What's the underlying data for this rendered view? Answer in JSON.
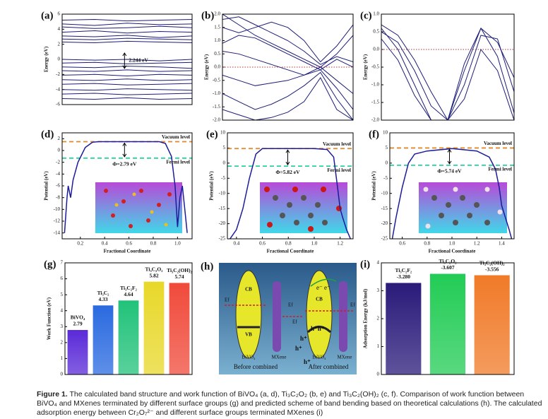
{
  "chart_data": [
    {
      "type": "line",
      "label": "(a)",
      "ylabel": "Energy (eV)",
      "color": "#1c1c78",
      "ylim": [
        -6,
        6
      ],
      "yticks": [
        -6,
        -4,
        -2,
        0,
        2,
        4,
        6
      ],
      "annotation": "2.244 eV",
      "series": [
        {
          "values": [
            5.2,
            5.3,
            5.1,
            5.2,
            5.3
          ]
        },
        {
          "values": [
            4.7,
            4.5,
            4.8,
            4.6,
            4.7
          ]
        },
        {
          "values": [
            4.3,
            4.1,
            4.2,
            4.4,
            4.2
          ]
        },
        {
          "values": [
            3.6,
            3.8,
            3.5,
            3.7,
            3.6
          ]
        },
        {
          "values": [
            3.1,
            3.0,
            3.2,
            2.9,
            3.1
          ]
        },
        {
          "values": [
            2.7,
            2.6,
            2.8,
            2.7,
            2.6
          ]
        },
        {
          "values": [
            2.3,
            2.2,
            2.4,
            2.3,
            2.2
          ]
        },
        {
          "values": [
            0,
            -0.1,
            0,
            -0.2,
            0
          ]
        },
        {
          "values": [
            -0.5,
            -0.4,
            -0.6,
            -0.5,
            -0.4
          ]
        },
        {
          "values": [
            -1.0,
            -1.1,
            -0.9,
            -1.0,
            -1.2
          ]
        },
        {
          "values": [
            -1.5,
            -1.6,
            -1.4,
            -1.6,
            -1.5
          ]
        },
        {
          "values": [
            -2.1,
            -2.0,
            -2.2,
            -2.0,
            -2.1
          ]
        },
        {
          "values": [
            -2.7,
            -2.8,
            -2.6,
            -2.8,
            -2.7
          ]
        },
        {
          "values": [
            -3.3,
            -3.2,
            -3.4,
            -3.3,
            -3.2
          ]
        },
        {
          "values": [
            -4.0,
            -4.1,
            -3.9,
            -4.0,
            -4.1
          ]
        },
        {
          "values": [
            -4.6,
            -4.5,
            -4.7,
            -4.6,
            -4.5
          ]
        },
        {
          "values": [
            -5.2,
            -5.3,
            -5.1,
            -5.3,
            -5.2
          ]
        }
      ]
    },
    {
      "type": "line",
      "label": "(b)",
      "ylabel": "Energy (eV)",
      "color": "#1c1c78",
      "ylim": [
        -2,
        2
      ],
      "yticks": [
        {
          "value": -2,
          "label": "-2.0"
        },
        -1.5,
        {
          "value": -1,
          "label": "-1.0"
        },
        -0.5,
        {
          "value": 0,
          "label": "0.0"
        },
        0.5,
        {
          "value": 1,
          "label": "1.0"
        },
        1.5,
        {
          "value": 2,
          "label": "2.0"
        }
      ],
      "hlines": [
        {
          "value": 0,
          "color": "#c03030",
          "style": "dotted"
        }
      ],
      "series": [
        {
          "values": [
            2.0,
            1.6,
            1.2,
            0.9,
            0.6,
            0.3,
            0.0,
            0.5,
            1.2
          ]
        },
        {
          "values": [
            1.8,
            1.9,
            1.6,
            1.3,
            1.0,
            0.6,
            0.1,
            0.4,
            0.2
          ]
        },
        {
          "values": [
            1.5,
            1.3,
            1.5,
            1.7,
            1.5,
            1.0,
            0.2,
            0.8,
            1.6
          ]
        },
        {
          "values": [
            0.9,
            1.2,
            1.1,
            0.8,
            0.5,
            0.2,
            -0.1,
            0.3,
            0.0
          ]
        },
        {
          "values": [
            0.6,
            0.5,
            0.3,
            0.1,
            -0.1,
            -0.3,
            0.0,
            -0.5,
            -1.0
          ]
        },
        {
          "values": [
            -0.3,
            -0.5,
            -0.7,
            -0.6,
            -0.5,
            -0.3,
            -0.1,
            -0.8,
            -1.6
          ]
        },
        {
          "values": [
            -1.0,
            -1.3,
            -1.6,
            -1.4,
            -1.1,
            -0.7,
            -0.2,
            -1.2,
            -2.0
          ]
        },
        {
          "values": [
            -1.6,
            -1.8,
            -2.0,
            -1.9,
            -1.7,
            -1.3,
            -0.4,
            -1.6,
            -2.0
          ]
        }
      ]
    },
    {
      "type": "line",
      "label": "(c)",
      "ylabel": "Energy (eV)",
      "color": "#1c1c78",
      "ylim": [
        -2,
        1
      ],
      "yticks": [
        {
          "value": -2,
          "label": "-2.0"
        },
        -1.5,
        {
          "value": -1,
          "label": "-1.0"
        },
        -0.5,
        {
          "value": 0,
          "label": "0.0"
        },
        0.5,
        {
          "value": 1,
          "label": "1.0"
        }
      ],
      "hlines": [
        {
          "value": 0,
          "color": "#c03030",
          "style": "dotted"
        }
      ],
      "series": [
        {
          "values": [
            0.7,
            0.4,
            -0.3,
            -1.2,
            -2.0,
            -0.6,
            0.6,
            0.2,
            -0.8
          ]
        },
        {
          "values": [
            0.5,
            0.2,
            -0.6,
            -1.6,
            -2.0,
            -1.0,
            0.4,
            0.3,
            -1.2
          ]
        },
        {
          "values": [
            0.6,
            0.0,
            -1.0,
            -2.0,
            -2.0,
            -0.4,
            0.6,
            -0.2,
            -1.8
          ]
        },
        {
          "values": [
            0.3,
            -0.3,
            -1.3,
            -2.0,
            -2.0,
            -1.4,
            0.0,
            -0.6,
            -2.0
          ]
        }
      ]
    },
    {
      "type": "line",
      "label": "(d)",
      "ylabel": "Potential (eV)",
      "xlabel": "Fractional Coordinate",
      "color": "#1c1c9a",
      "xlim": [
        0.05,
        1.12
      ],
      "xticks": [
        0.2,
        0.4,
        0.6,
        0.8,
        {
          "value": 1,
          "label": "1.0"
        }
      ],
      "ylim": [
        -15,
        3
      ],
      "yticks": [
        -14,
        -12,
        -10,
        -8,
        -6,
        -4,
        -2,
        0,
        2
      ],
      "annotation": "Φ=2.79 eV",
      "hlines": [
        {
          "value": 1.5,
          "label": "Vacuum level",
          "color": "#e0882a",
          "style": "dashed"
        },
        {
          "value": -1.3,
          "label": "Fermi level",
          "color": "#2ad0a0",
          "style": "dashed"
        }
      ],
      "x": [
        0.07,
        0.09,
        0.1,
        0.12,
        0.14,
        0.18,
        0.24,
        0.3,
        0.35,
        0.5,
        0.7,
        0.85,
        0.9,
        0.95,
        0.98,
        1.0,
        1.02,
        1.04,
        1.06,
        1.08
      ],
      "series": [
        {
          "values": [
            -14,
            -8,
            -6,
            -8,
            -5,
            -2,
            0.5,
            1.4,
            1.5,
            1.5,
            1.5,
            1.5,
            1.2,
            -1,
            -6,
            -13,
            -8,
            -6,
            -10,
            -14
          ]
        }
      ]
    },
    {
      "type": "line",
      "label": "(e)",
      "ylabel": "Potential (eV)",
      "xlabel": "Fractional Coordinate",
      "color": "#1c1c9a",
      "xlim": [
        0.33,
        1.3
      ],
      "xticks": [
        0.4,
        0.6,
        0.8,
        {
          "value": 1,
          "label": "1.0"
        },
        1.2
      ],
      "ylim": [
        -25,
        10
      ],
      "yticks": [
        -25,
        -20,
        -15,
        -10,
        -5,
        0,
        5,
        10
      ],
      "annotation": "Φ=5.82 eV",
      "hlines": [
        {
          "value": 4.8,
          "label": "Vacuum level",
          "color": "#e0882a",
          "style": "dashed"
        },
        {
          "value": -1,
          "label": "Fermi level",
          "color": "#2ad0a0",
          "style": "dashed"
        }
      ],
      "x": [
        0.35,
        0.4,
        0.45,
        0.5,
        0.55,
        0.6,
        0.8,
        1.0,
        1.1,
        1.15,
        1.18,
        1.2,
        1.22,
        1.25,
        1.28
      ],
      "series": [
        {
          "values": [
            -25,
            -22,
            -15,
            -5,
            3,
            4.8,
            4.8,
            4.8,
            4.5,
            2,
            -8,
            -15,
            -18,
            -22,
            -25
          ]
        }
      ]
    },
    {
      "type": "line",
      "label": "(f)",
      "ylabel": "Potential (eV)",
      "xlabel": "Fractional Coordinate",
      "color": "#1c1c9a",
      "xlim": [
        0.5,
        1.5
      ],
      "xticks": [
        0.6,
        0.8,
        {
          "value": 1,
          "label": "1.0"
        },
        1.2,
        1.4
      ],
      "ylim": [
        -25,
        10
      ],
      "yticks": [
        -25,
        -20,
        -15,
        -10,
        -5,
        0,
        5,
        10
      ],
      "annotation": "Φ=5.74 eV",
      "hlines": [
        {
          "value": 5,
          "label": "Vacuum level",
          "color": "#e0882a",
          "style": "dashed"
        },
        {
          "value": -0.7,
          "label": "Fermi level",
          "color": "#2ad0a0",
          "style": "dashed"
        }
      ],
      "x": [
        0.52,
        0.55,
        0.6,
        0.65,
        0.7,
        0.8,
        1.0,
        1.2,
        1.3,
        1.35,
        1.38,
        1.4,
        1.43,
        1.46,
        1.48
      ],
      "series": [
        {
          "values": [
            -25,
            -18,
            -8,
            0,
            3,
            4,
            4.8,
            4,
            2,
            -2,
            -8,
            -14,
            -18,
            -22,
            -25
          ]
        }
      ]
    },
    {
      "type": "bar",
      "label": "(g)",
      "ylabel": "Work Function (eV)",
      "ylim": [
        0,
        7
      ],
      "yticks": [
        0,
        1,
        2,
        3,
        4,
        5,
        6,
        7
      ],
      "categories": [
        "BiVO₄",
        "Ti₃C₂",
        "Ti₃C₂F₂",
        "Ti₃C₂O₂",
        "Ti₃C₂(OH)₂"
      ],
      "values": [
        2.79,
        4.33,
        4.64,
        5.82,
        5.74
      ],
      "colors": [
        "#5a2ad8",
        "#2a6ae0",
        "#22c27a",
        "#e8d82a",
        "#f04a3a"
      ]
    },
    {
      "type": "bar",
      "label": "(i)",
      "ylabel": "Adsorption Energy (kJ/mol)",
      "ylim": [
        0,
        4
      ],
      "yticks": [
        0,
        1,
        2,
        3,
        4
      ],
      "categories": [
        "Ti₃C₂F₂",
        "Ti₃C₂O₂",
        "Ti₃C₂(OH)₂"
      ],
      "values": [
        -3.28,
        -3.607,
        -3.556
      ],
      "value_labels": [
        "-3.280",
        "-3.607",
        "-3.556"
      ],
      "colors": [
        "#2a1a7a",
        "#22cc55",
        "#f07a28"
      ]
    }
  ],
  "diagram": {
    "label": "(h)",
    "left": {
      "cb": "CB",
      "vb": "VB",
      "ef": "Ef",
      "materials": [
        "BiVO₄",
        "MXene"
      ],
      "caption": "Before combined"
    },
    "middle_ef": [
      "Ef",
      "Ef"
    ],
    "right": {
      "cb": "CB",
      "ef": "Ef",
      "electrons": "e⁻ e⁻",
      "holes_band": "h⁺h⁺",
      "holes": [
        "h⁺",
        "h⁺",
        "h⁺"
      ],
      "materials": [
        "BiVO₄",
        "MXene"
      ],
      "caption": "After combined"
    }
  },
  "caption": {
    "label": "Figure 1.",
    "text": " The calculated band structure and work function of BiVO₄ (a, d), Ti₃C₂O₂ (b, e) and Ti₃C₂(OH)₂ (c, f). Comparison of work function between BiVO₄ and MXenes terminated by different surface groups (g) and predicted scheme of band bending based on theoretical calculations (h). The calculated adsorption energy between Cr₂O₇²⁻ and different surface groups terminated MXenes (i)"
  }
}
